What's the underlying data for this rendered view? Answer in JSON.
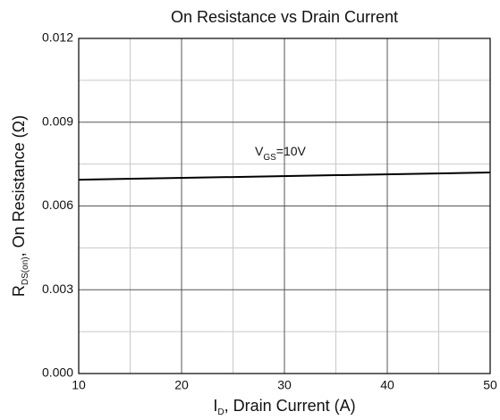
{
  "chart_data": {
    "type": "line",
    "title": "On Resistance vs Drain Current",
    "x_label": {
      "main": "I",
      "sub": "D",
      "rest": ", Drain Current (A)"
    },
    "y_label": {
      "main": "R",
      "sub": "DS(on)",
      "rest": ", On Resistance (Ω)"
    },
    "annotation": {
      "main": "V",
      "sub": "GS",
      "rest": "=10V"
    },
    "x": [
      10,
      50
    ],
    "series": [
      {
        "name": "VGS=10V",
        "color": "#000000",
        "values": [
          0.00694,
          0.0072
        ]
      }
    ],
    "xlim": [
      10,
      50
    ],
    "xticks": [
      10,
      20,
      30,
      40,
      50
    ],
    "xminor_ticks": [
      15,
      25,
      35,
      45
    ],
    "ylim": [
      0,
      0.012
    ],
    "yticks": [
      {
        "value": 0,
        "label": "0.000"
      },
      {
        "value": 0.003,
        "label": "0.003"
      },
      {
        "value": 0.006,
        "label": "0.006"
      },
      {
        "value": 0.009,
        "label": "0.009"
      },
      {
        "value": 0.012,
        "label": "0.012"
      }
    ],
    "yminor_ticks": [
      0.0015,
      0.0045,
      0.0075,
      0.0105
    ],
    "grid": true
  }
}
